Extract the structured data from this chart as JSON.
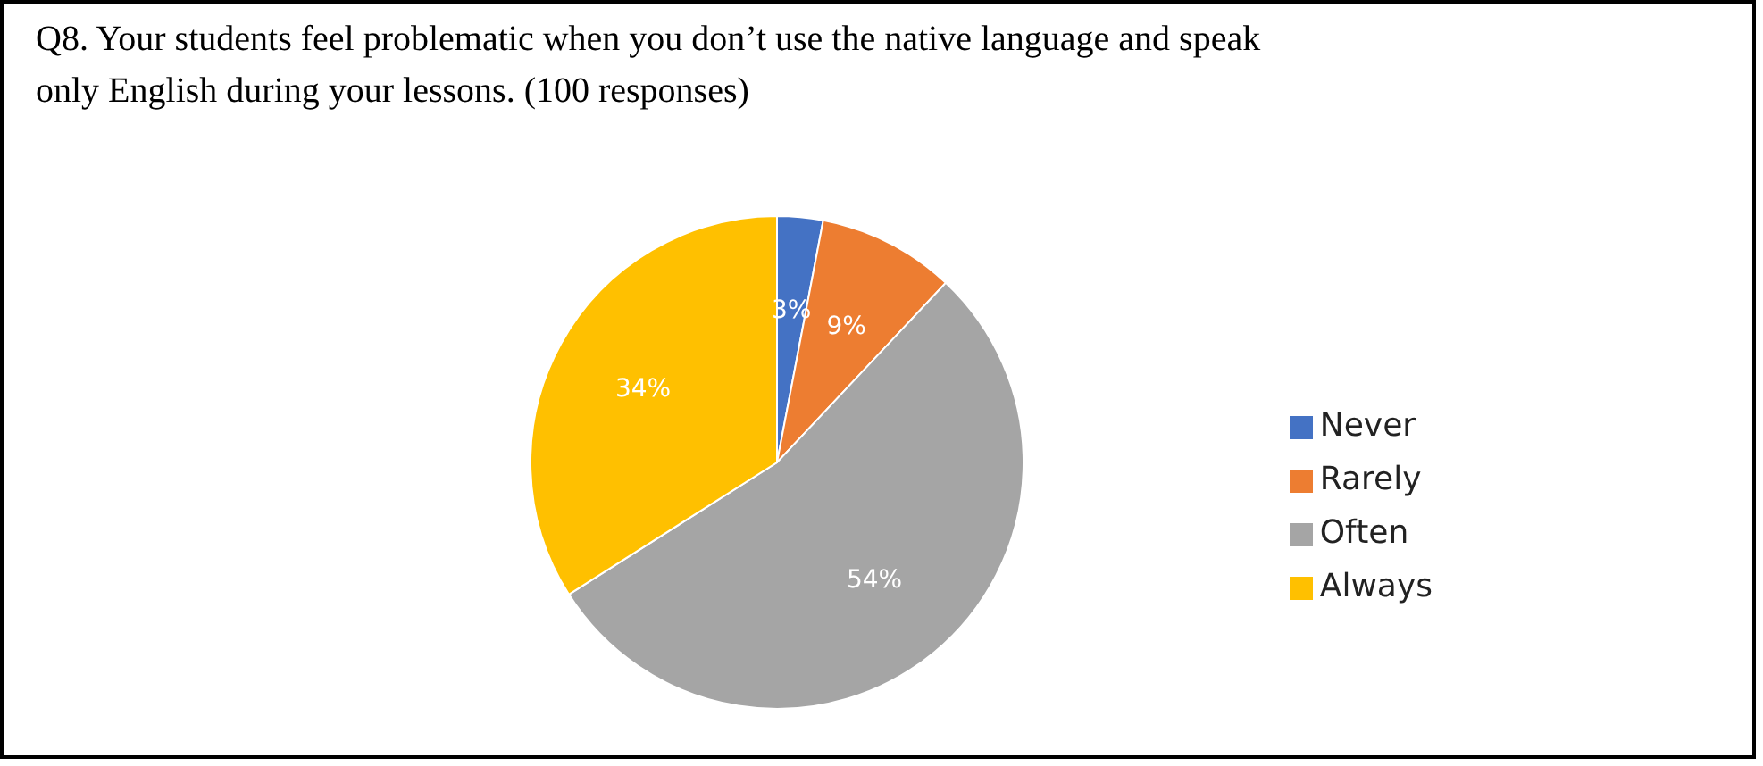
{
  "chart_data": {
    "type": "pie",
    "title": "Q8. Your students feel problematic when you don’t use the native language and speak only English during your lessons. (100 responses)",
    "categories": [
      "Never",
      "Rarely",
      "Often",
      "Always"
    ],
    "values": [
      3,
      9,
      54,
      34
    ],
    "colors": [
      "#4472c4",
      "#ed7d31",
      "#a5a5a5",
      "#ffc000"
    ],
    "value_labels": [
      "3%",
      "9%",
      "54%",
      "34%"
    ],
    "legend": "right"
  }
}
